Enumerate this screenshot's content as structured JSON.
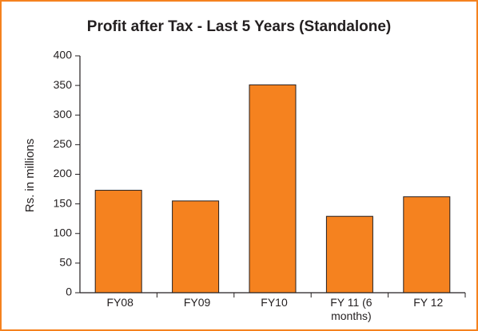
{
  "chart_data": {
    "type": "bar",
    "title": "Profit after Tax - Last 5 Years (Standalone)",
    "y_label": "Rs. in millions",
    "categories": [
      "FY08",
      "FY09",
      "FY10",
      "FY 11 (6 months)",
      "FY 12"
    ],
    "values": [
      173,
      155,
      351,
      129,
      162
    ],
    "color": "#f5821f",
    "ylim": [
      0,
      400
    ],
    "yticks": [
      0,
      50,
      100,
      150,
      200,
      250,
      300,
      350,
      400
    ],
    "grid": false
  }
}
